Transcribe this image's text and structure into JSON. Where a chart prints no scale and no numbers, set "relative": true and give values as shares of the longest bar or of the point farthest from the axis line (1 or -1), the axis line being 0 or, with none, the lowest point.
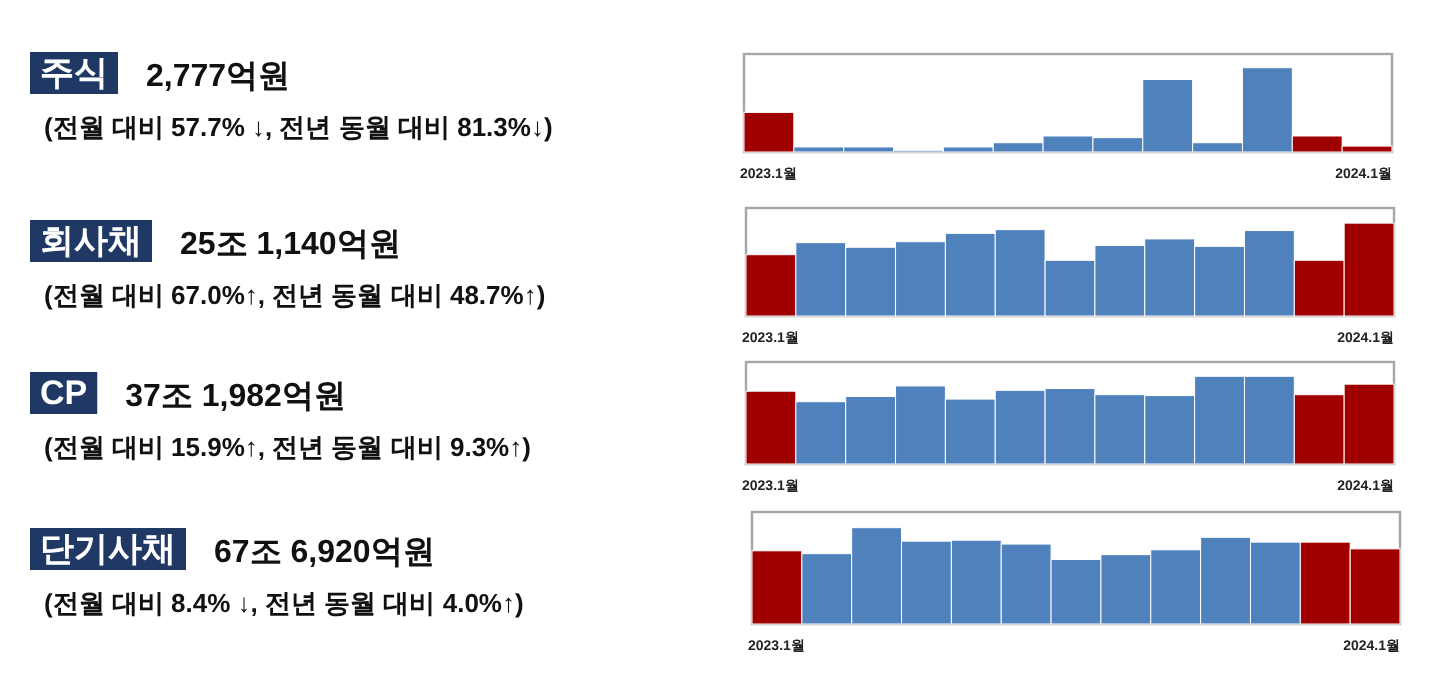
{
  "chart_data": [
    {
      "type": "bar",
      "annotations": [
        "주식",
        "2,777억원",
        "(전월 대비 57.7% ↓, 전년 동월 대비 81.3%↓)"
      ],
      "relative": true,
      "categories": [
        "2023.1월",
        null,
        null,
        null,
        null,
        null,
        null,
        null,
        null,
        null,
        null,
        null,
        "2024.1월"
      ],
      "values": [
        0.47,
        0.06,
        0.06,
        0.02,
        0.06,
        0.11,
        0.19,
        0.17,
        0.86,
        0.11,
        1,
        0.19,
        0.07
      ],
      "colors": [
        "#a00000",
        "#4f81bd",
        "#4f81bd",
        "#4f81bd",
        "#4f81bd",
        "#4f81bd",
        "#4f81bd",
        "#4f81bd",
        "#4f81bd",
        "#4f81bd",
        "#4f81bd",
        "#a00000",
        "#a00000"
      ]
    },
    {
      "type": "bar",
      "annotations": [
        "회사채",
        "25조 1,140억원",
        "(전월 대비 67.0%↑, 전년 동월 대비 48.7%↑)"
      ],
      "relative": true,
      "categories": [
        "2023.1월",
        null,
        null,
        null,
        null,
        null,
        null,
        null,
        null,
        null,
        null,
        null,
        "2024.1월"
      ],
      "values": [
        0.66,
        0.79,
        0.74,
        0.8,
        0.89,
        0.93,
        0.6,
        0.76,
        0.83,
        0.75,
        0.92,
        0.6,
        1
      ],
      "colors": [
        "#a00000",
        "#4f81bd",
        "#4f81bd",
        "#4f81bd",
        "#4f81bd",
        "#4f81bd",
        "#4f81bd",
        "#4f81bd",
        "#4f81bd",
        "#4f81bd",
        "#4f81bd",
        "#a00000",
        "#a00000"
      ]
    },
    {
      "type": "bar",
      "annotations": [
        "CP",
        "37조 1,982억원",
        "(전월 대비 15.9%↑, 전년 동월 대비 9.3%↑)"
      ],
      "relative": true,
      "categories": [
        "2023.1월",
        null,
        null,
        null,
        null,
        null,
        null,
        null,
        null,
        null,
        null,
        null,
        "2024.1월"
      ],
      "values": [
        0.83,
        0.71,
        0.77,
        0.89,
        0.74,
        0.84,
        0.86,
        0.79,
        0.78,
        1,
        1,
        0.79,
        0.91
      ],
      "colors": [
        "#a00000",
        "#4f81bd",
        "#4f81bd",
        "#4f81bd",
        "#4f81bd",
        "#4f81bd",
        "#4f81bd",
        "#4f81bd",
        "#4f81bd",
        "#4f81bd",
        "#4f81bd",
        "#a00000",
        "#a00000"
      ]
    },
    {
      "type": "bar",
      "annotations": [
        "단기사채",
        "67조 6,920억원",
        "(전월 대비 8.4% ↓, 전년 동월 대비 4.0%↑)"
      ],
      "relative": true,
      "categories": [
        "2023.1월",
        null,
        null,
        null,
        null,
        null,
        null,
        null,
        null,
        null,
        null,
        null,
        "2024.1월"
      ],
      "values": [
        0.76,
        0.73,
        1,
        0.86,
        0.87,
        0.83,
        0.67,
        0.72,
        0.77,
        0.9,
        0.85,
        0.85,
        0.78
      ],
      "colors": [
        "#a00000",
        "#4f81bd",
        "#4f81bd",
        "#4f81bd",
        "#4f81bd",
        "#4f81bd",
        "#4f81bd",
        "#4f81bd",
        "#4f81bd",
        "#4f81bd",
        "#4f81bd",
        "#a00000",
        "#a00000"
      ]
    }
  ]
}
